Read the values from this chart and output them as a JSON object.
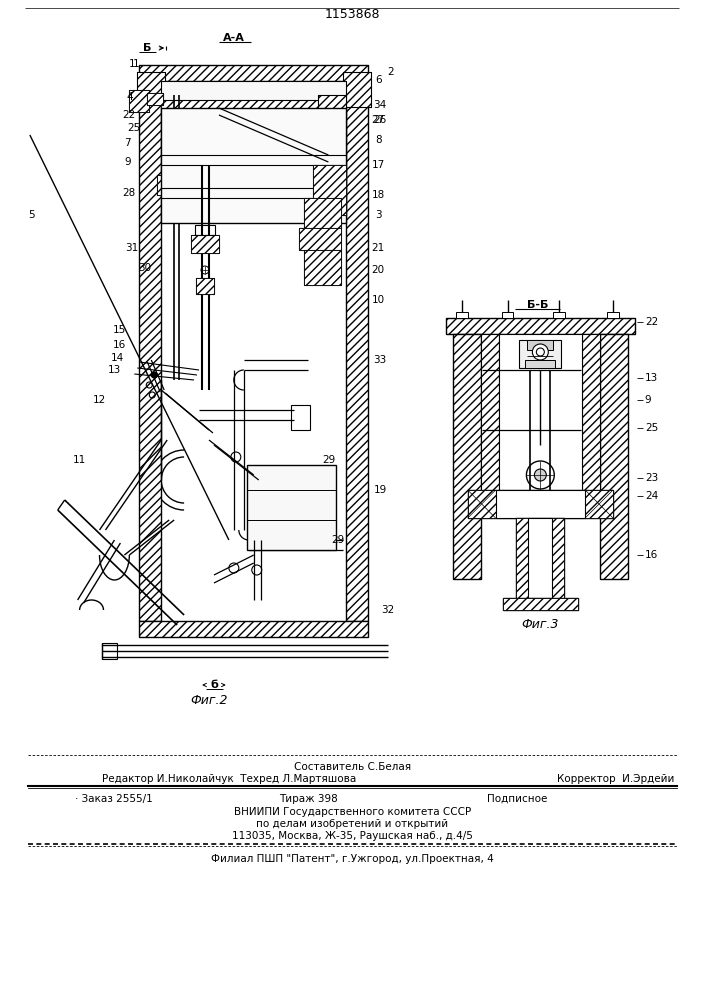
{
  "patent_number": "1153868",
  "background_color": "#ffffff",
  "fig2_label": "Фиг.2",
  "fig3_label": "Фиг.3",
  "section_aa": "А-А",
  "section_bb": "Б-Б",
  "footer": {
    "line1": "Составитель С.Белая",
    "line2_l": "Редактор И.Николайчук  Техред Л.Мартяшова",
    "line2_r": "Корректор  И.Эрдейи",
    "line3_l": "· Заказ 2555/1",
    "line3_m": "Тираж 398",
    "line3_r": "Подписное",
    "line4": "ВНИИПИ Государственного комитета СССР",
    "line5": "по делам изобретений и открытий",
    "line6": "113035, Москва, Ж-35, Раушская наб., д.4/5",
    "line7": "Филиал ПШП \"Патент\", г.Ужгород, ул.Проектная, 4"
  }
}
